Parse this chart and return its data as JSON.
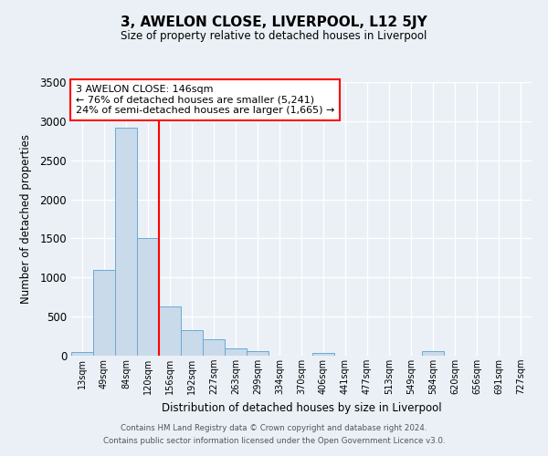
{
  "title": "3, AWELON CLOSE, LIVERPOOL, L12 5JY",
  "subtitle": "Size of property relative to detached houses in Liverpool",
  "xlabel": "Distribution of detached houses by size in Liverpool",
  "ylabel": "Number of detached properties",
  "bar_labels": [
    "13sqm",
    "49sqm",
    "84sqm",
    "120sqm",
    "156sqm",
    "192sqm",
    "227sqm",
    "263sqm",
    "299sqm",
    "334sqm",
    "370sqm",
    "406sqm",
    "441sqm",
    "477sqm",
    "513sqm",
    "549sqm",
    "584sqm",
    "620sqm",
    "656sqm",
    "691sqm",
    "727sqm"
  ],
  "bar_values": [
    45,
    1100,
    2920,
    1510,
    635,
    330,
    205,
    90,
    55,
    0,
    0,
    30,
    0,
    0,
    0,
    0,
    55,
    0,
    0,
    0,
    0
  ],
  "bar_color": "#c9daea",
  "bar_edge_color": "#6aaad4",
  "vline_color": "red",
  "vline_x": 3.5,
  "annotation_text": "3 AWELON CLOSE: 146sqm\n← 76% of detached houses are smaller (5,241)\n24% of semi-detached houses are larger (1,665) →",
  "annotation_box_color": "white",
  "annotation_box_edge_color": "red",
  "ylim": [
    0,
    3500
  ],
  "yticks": [
    0,
    500,
    1000,
    1500,
    2000,
    2500,
    3000,
    3500
  ],
  "background_color": "#eaf0f6",
  "grid_color": "white",
  "footer_line1": "Contains HM Land Registry data © Crown copyright and database right 2024.",
  "footer_line2": "Contains public sector information licensed under the Open Government Licence v3.0."
}
